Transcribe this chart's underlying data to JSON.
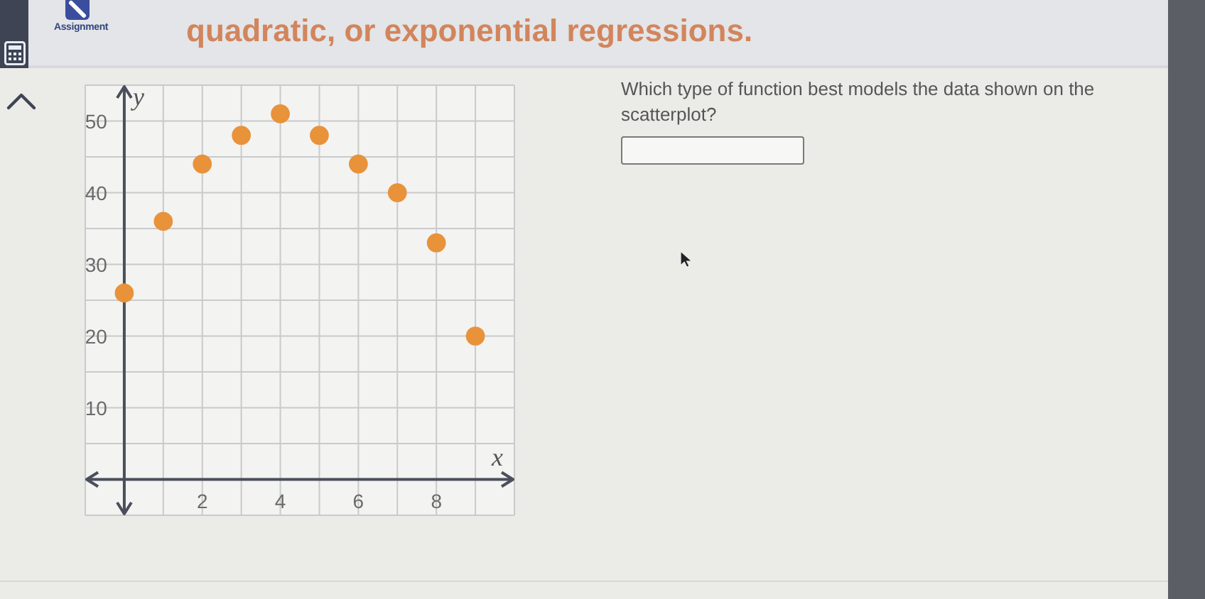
{
  "chart_data": {
    "type": "scatter",
    "title": "quadratic, or exponential regressions.",
    "xlabel": "x",
    "ylabel": "y",
    "annotations": [
      "Assignment",
      "Which type of function best models the data shown on the scatterplot?"
    ],
    "x": [
      0,
      1,
      2,
      3,
      4,
      5,
      6,
      7,
      8,
      9
    ],
    "values": [
      26,
      36,
      44,
      48,
      51,
      48,
      44,
      40,
      33,
      20
    ],
    "color": "#e8923a",
    "marker": "circle",
    "grid": true,
    "xlim": [
      -1,
      10
    ],
    "ylim": [
      -5,
      55
    ],
    "xticks": [
      {
        "value": -1,
        "label": null
      },
      {
        "value": 0,
        "label": null
      },
      {
        "value": 1,
        "label": null
      },
      2,
      {
        "value": 3,
        "label": null
      },
      4,
      {
        "value": 5,
        "label": null
      },
      6,
      {
        "value": 7,
        "label": null
      },
      8,
      {
        "value": 9,
        "label": null
      },
      {
        "value": 10,
        "label": null
      }
    ],
    "yticks": [
      {
        "value": -5,
        "label": null
      },
      {
        "value": 0,
        "label": null
      },
      {
        "value": 5,
        "label": null
      },
      10,
      {
        "value": 15,
        "label": null
      },
      20,
      {
        "value": 25,
        "label": null
      },
      30,
      {
        "value": 35,
        "label": null
      },
      40,
      {
        "value": 45,
        "label": null
      },
      50,
      {
        "value": 55,
        "label": null
      }
    ]
  }
}
